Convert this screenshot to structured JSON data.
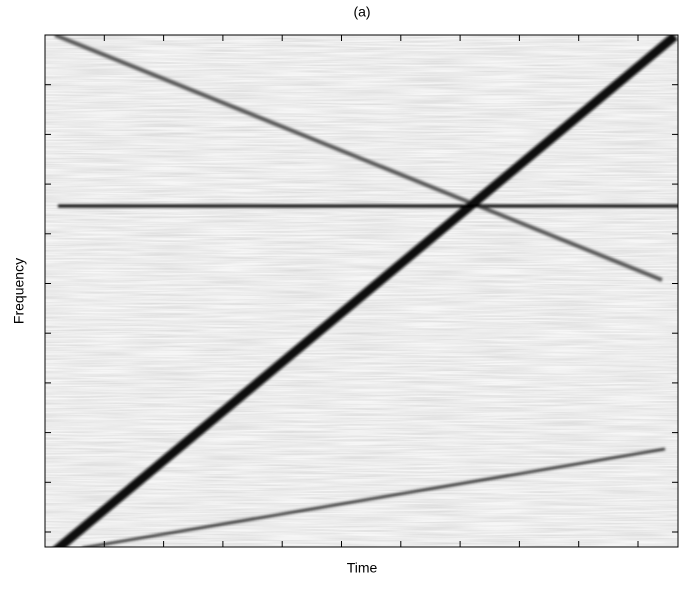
{
  "chart_data": {
    "type": "spectrogram",
    "title": "(a)",
    "xlabel": "Time",
    "ylabel": "Frequency"
  }
}
